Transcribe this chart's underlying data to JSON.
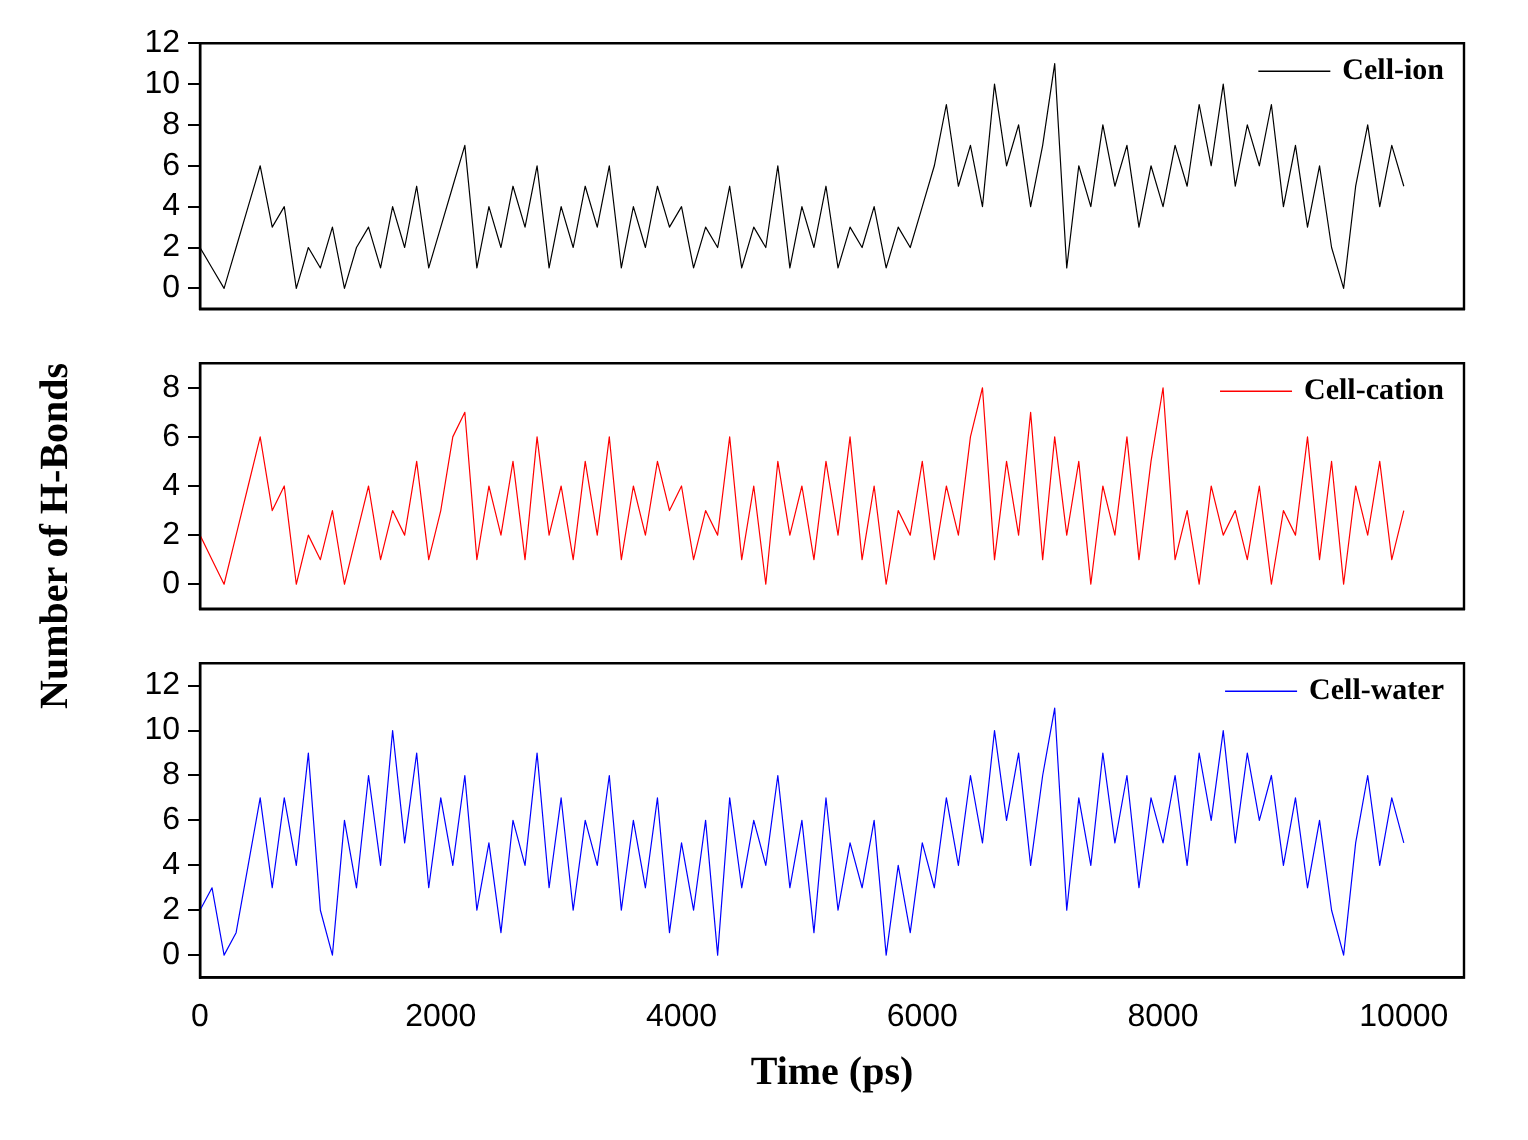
{
  "chart_data": [
    {
      "type": "line",
      "x": [
        0,
        100,
        200,
        300,
        400,
        500,
        600,
        700,
        800,
        900,
        1000,
        1100,
        1200,
        1300,
        1400,
        1500,
        1600,
        1700,
        1800,
        1900,
        2000,
        2100,
        2200,
        2300,
        2400,
        2500,
        2600,
        2700,
        2800,
        2900,
        3000,
        3100,
        3200,
        3300,
        3400,
        3500,
        3600,
        3700,
        3800,
        3900,
        4000,
        4100,
        4200,
        4300,
        4400,
        4500,
        4600,
        4700,
        4800,
        4900,
        5000,
        5100,
        5200,
        5300,
        5400,
        5500,
        5600,
        5700,
        5800,
        5900,
        6000,
        6100,
        6200,
        6300,
        6400,
        6500,
        6600,
        6700,
        6800,
        6900,
        7000,
        7100,
        7200,
        7300,
        7400,
        7500,
        7600,
        7700,
        7800,
        7900,
        8000,
        8100,
        8200,
        8300,
        8400,
        8500,
        8600,
        8700,
        8800,
        8900,
        9000,
        9100,
        9200,
        9300,
        9400,
        9500,
        9600,
        9700,
        9800,
        9900,
        10000
      ],
      "series": [
        {
          "name": "Cell-ion",
          "color": "#000000",
          "values": [
            2,
            1,
            0,
            2,
            4,
            6,
            3,
            4,
            0,
            2,
            1,
            3,
            0,
            2,
            3,
            1,
            4,
            2,
            5,
            1,
            3,
            5,
            7,
            1,
            4,
            2,
            5,
            3,
            6,
            1,
            4,
            2,
            5,
            3,
            6,
            1,
            4,
            2,
            5,
            3,
            4,
            1,
            3,
            2,
            5,
            1,
            3,
            2,
            6,
            1,
            4,
            2,
            5,
            1,
            3,
            2,
            4,
            1,
            3,
            2,
            4,
            6,
            9,
            5,
            7,
            4,
            10,
            6,
            8,
            4,
            7,
            11,
            1,
            6,
            4,
            8,
            5,
            7,
            3,
            6,
            4,
            7,
            5,
            9,
            6,
            10,
            5,
            8,
            6,
            9,
            4,
            7,
            3,
            6,
            2,
            0,
            5,
            8,
            4,
            7,
            5
          ]
        }
      ],
      "xlim": [
        0,
        10500
      ],
      "xticks": [
        0,
        2000,
        4000,
        6000,
        8000,
        10000
      ],
      "ylim": [
        -1,
        12
      ],
      "yticks": [
        0,
        2,
        4,
        6,
        8,
        10,
        12
      ],
      "tick_labels": "y",
      "legend": "top right",
      "grid": false
    },
    {
      "type": "line",
      "ylabel": "Number of H-Bonds",
      "x": [
        0,
        100,
        200,
        300,
        400,
        500,
        600,
        700,
        800,
        900,
        1000,
        1100,
        1200,
        1300,
        1400,
        1500,
        1600,
        1700,
        1800,
        1900,
        2000,
        2100,
        2200,
        2300,
        2400,
        2500,
        2600,
        2700,
        2800,
        2900,
        3000,
        3100,
        3200,
        3300,
        3400,
        3500,
        3600,
        3700,
        3800,
        3900,
        4000,
        4100,
        4200,
        4300,
        4400,
        4500,
        4600,
        4700,
        4800,
        4900,
        5000,
        5100,
        5200,
        5300,
        5400,
        5500,
        5600,
        5700,
        5800,
        5900,
        6000,
        6100,
        6200,
        6300,
        6400,
        6500,
        6600,
        6700,
        6800,
        6900,
        7000,
        7100,
        7200,
        7300,
        7400,
        7500,
        7600,
        7700,
        7800,
        7900,
        8000,
        8100,
        8200,
        8300,
        8400,
        8500,
        8600,
        8700,
        8800,
        8900,
        9000,
        9100,
        9200,
        9300,
        9400,
        9500,
        9600,
        9700,
        9800,
        9900,
        10000
      ],
      "series": [
        {
          "name": "Cell-cation",
          "color": "#ff0000",
          "values": [
            2,
            1,
            0,
            2,
            4,
            6,
            3,
            4,
            0,
            2,
            1,
            3,
            0,
            2,
            4,
            1,
            3,
            2,
            5,
            1,
            3,
            6,
            7,
            1,
            4,
            2,
            5,
            1,
            6,
            2,
            4,
            1,
            5,
            2,
            6,
            1,
            4,
            2,
            5,
            3,
            4,
            1,
            3,
            2,
            6,
            1,
            4,
            0,
            5,
            2,
            4,
            1,
            5,
            2,
            6,
            1,
            4,
            0,
            3,
            2,
            5,
            1,
            4,
            2,
            6,
            8,
            1,
            5,
            2,
            7,
            1,
            6,
            2,
            5,
            0,
            4,
            2,
            6,
            1,
            5,
            8,
            1,
            3,
            0,
            4,
            2,
            3,
            1,
            4,
            0,
            3,
            2,
            6,
            1,
            5,
            0,
            4,
            2,
            5,
            1,
            3
          ]
        }
      ],
      "xlim": [
        0,
        10500
      ],
      "xticks": [
        0,
        2000,
        4000,
        6000,
        8000,
        10000
      ],
      "ylim": [
        -1,
        9
      ],
      "yticks": [
        0,
        2,
        4,
        6,
        8
      ],
      "tick_labels": "y",
      "legend": "top right",
      "grid": false
    },
    {
      "type": "line",
      "xlabel": "Time (ps)",
      "x": [
        0,
        100,
        200,
        300,
        400,
        500,
        600,
        700,
        800,
        900,
        1000,
        1100,
        1200,
        1300,
        1400,
        1500,
        1600,
        1700,
        1800,
        1900,
        2000,
        2100,
        2200,
        2300,
        2400,
        2500,
        2600,
        2700,
        2800,
        2900,
        3000,
        3100,
        3200,
        3300,
        3400,
        3500,
        3600,
        3700,
        3800,
        3900,
        4000,
        4100,
        4200,
        4300,
        4400,
        4500,
        4600,
        4700,
        4800,
        4900,
        5000,
        5100,
        5200,
        5300,
        5400,
        5500,
        5600,
        5700,
        5800,
        5900,
        6000,
        6100,
        6200,
        6300,
        6400,
        6500,
        6600,
        6700,
        6800,
        6900,
        7000,
        7100,
        7200,
        7300,
        7400,
        7500,
        7600,
        7700,
        7800,
        7900,
        8000,
        8100,
        8200,
        8300,
        8400,
        8500,
        8600,
        8700,
        8800,
        8900,
        9000,
        9100,
        9200,
        9300,
        9400,
        9500,
        9600,
        9700,
        9800,
        9900,
        10000
      ],
      "series": [
        {
          "name": "Cell-water",
          "color": "#0000ff",
          "values": [
            2,
            3,
            0,
            1,
            4,
            7,
            3,
            7,
            4,
            9,
            2,
            0,
            6,
            3,
            8,
            4,
            10,
            5,
            9,
            3,
            7,
            4,
            8,
            2,
            5,
            1,
            6,
            4,
            9,
            3,
            7,
            2,
            6,
            4,
            8,
            2,
            6,
            3,
            7,
            1,
            5,
            2,
            6,
            0,
            7,
            3,
            6,
            4,
            8,
            3,
            6,
            1,
            7,
            2,
            5,
            3,
            6,
            0,
            4,
            1,
            5,
            3,
            7,
            4,
            8,
            5,
            10,
            6,
            9,
            4,
            8,
            11,
            2,
            7,
            4,
            9,
            5,
            8,
            3,
            7,
            5,
            8,
            4,
            9,
            6,
            10,
            5,
            9,
            6,
            8,
            4,
            7,
            3,
            6,
            2,
            0,
            5,
            8,
            4,
            7,
            5
          ]
        }
      ],
      "xlim": [
        0,
        10500
      ],
      "xticks": [
        0,
        2000,
        4000,
        6000,
        8000,
        10000
      ],
      "ylim": [
        -1,
        13
      ],
      "yticks": [
        0,
        2,
        4,
        6,
        8,
        10,
        12
      ],
      "legend": "top right",
      "grid": false
    }
  ]
}
